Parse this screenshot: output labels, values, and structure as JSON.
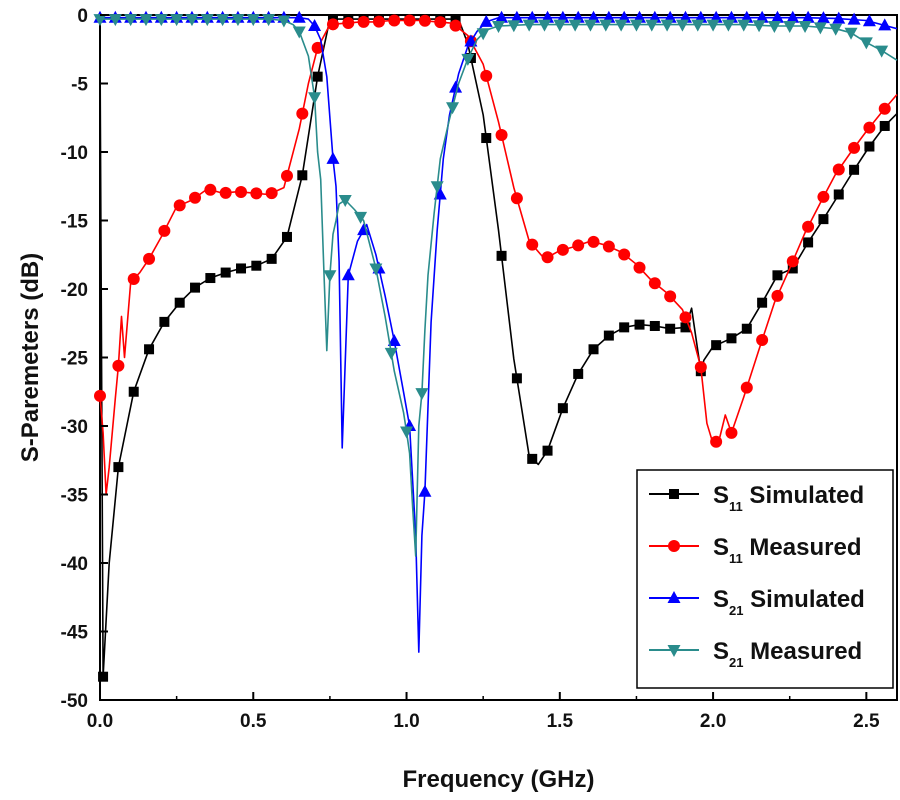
{
  "chart_data": {
    "type": "line",
    "title": "",
    "xlabel": "Frequency (GHz)",
    "ylabel": "S-Paremeters (dB)",
    "xlim": [
      0.0,
      2.6
    ],
    "ylim": [
      -50,
      0
    ],
    "x_ticks": [
      "0.0",
      "0.5",
      "1.0",
      "1.5",
      "2.0",
      "2.5"
    ],
    "y_ticks": [
      "0",
      "-5",
      "-10",
      "-15",
      "-20",
      "-25",
      "-30",
      "-35",
      "-40",
      "-45",
      "-50"
    ],
    "grid": false,
    "legend_position": "bottom-right",
    "series": [
      {
        "name": "S11 Simulated",
        "label_main": "S",
        "label_sub": "11",
        "label_rest": " Simulated",
        "color": "#000000",
        "marker": "square",
        "x": [
          0.0,
          0.01,
          0.03,
          0.06,
          0.11,
          0.16,
          0.21,
          0.26,
          0.31,
          0.36,
          0.41,
          0.46,
          0.51,
          0.56,
          0.61,
          0.66,
          0.71,
          0.75,
          0.8,
          0.85,
          0.9,
          0.95,
          1.0,
          1.05,
          1.1,
          1.15,
          1.17,
          1.2,
          1.25,
          1.3,
          1.35,
          1.4,
          1.43,
          1.46,
          1.51,
          1.56,
          1.61,
          1.66,
          1.71,
          1.76,
          1.81,
          1.86,
          1.91,
          1.93,
          1.96,
          1.97,
          2.0,
          2.06,
          2.11,
          2.16,
          2.21,
          2.26,
          2.31,
          2.36,
          2.41,
          2.46,
          2.51,
          2.56,
          2.6
        ],
        "values": [
          -2,
          -48.3,
          -40,
          -33,
          -27.5,
          -24.4,
          -22.4,
          -21,
          -19.9,
          -19.2,
          -18.8,
          -18.5,
          -18.3,
          -17.8,
          -16.2,
          -11.7,
          -4.5,
          -0.3,
          -0.3,
          -0.3,
          -0.3,
          -0.3,
          -0.3,
          -0.3,
          -0.3,
          -0.3,
          -0.3,
          -2.1,
          -7.3,
          -15.7,
          -25.1,
          -32.2,
          -32.8,
          -31.8,
          -28.7,
          -26.2,
          -24.4,
          -23.4,
          -22.8,
          -22.6,
          -22.7,
          -22.9,
          -22.8,
          -21.4,
          -26.0,
          -25.2,
          -24.2,
          -23.6,
          -22.9,
          -21.0,
          -19.0,
          -18.5,
          -16.6,
          -14.9,
          -13.1,
          -11.3,
          -9.6,
          -8.1,
          -7.2
        ],
        "marker_x": [
          0.01,
          0.06,
          0.11,
          0.16,
          0.21,
          0.26,
          0.31,
          0.36,
          0.41,
          0.46,
          0.51,
          0.56,
          0.61,
          0.66,
          0.71,
          0.76,
          0.81,
          0.86,
          0.91,
          0.96,
          1.01,
          1.06,
          1.11,
          1.16,
          1.21,
          1.26,
          1.31,
          1.36,
          1.41,
          1.46,
          1.51,
          1.56,
          1.61,
          1.66,
          1.71,
          1.76,
          1.81,
          1.86,
          1.91,
          1.96,
          2.01,
          2.06,
          2.11,
          2.16,
          2.21,
          2.26,
          2.31,
          2.36,
          2.41,
          2.46,
          2.51,
          2.56
        ]
      },
      {
        "name": "S11 Measured",
        "label_main": "S",
        "label_sub": "11",
        "label_rest": " Measured",
        "color": "#ff0000",
        "marker": "circle",
        "x": [
          0.0,
          0.01,
          0.02,
          0.03,
          0.05,
          0.06,
          0.07,
          0.08,
          0.1,
          0.13,
          0.16,
          0.2,
          0.25,
          0.3,
          0.35,
          0.4,
          0.45,
          0.5,
          0.55,
          0.6,
          0.65,
          0.68,
          0.71,
          0.75,
          0.8,
          0.85,
          0.9,
          0.95,
          1.0,
          1.05,
          1.1,
          1.15,
          1.2,
          1.25,
          1.3,
          1.35,
          1.4,
          1.45,
          1.5,
          1.55,
          1.6,
          1.65,
          1.7,
          1.75,
          1.8,
          1.85,
          1.9,
          1.93,
          1.96,
          1.98,
          2.0,
          2.02,
          2.04,
          2.06,
          2.1,
          2.15,
          2.2,
          2.25,
          2.3,
          2.35,
          2.4,
          2.45,
          2.5,
          2.55,
          2.6
        ],
        "values": [
          -27.8,
          -30.5,
          -35,
          -33,
          -28,
          -25.6,
          -22,
          -25,
          -19.5,
          -18.8,
          -17.8,
          -16.2,
          -14,
          -13.5,
          -12.7,
          -13,
          -12.9,
          -13,
          -13.1,
          -12.6,
          -8.3,
          -5,
          -2.4,
          -0.7,
          -0.6,
          -0.5,
          -0.5,
          -0.4,
          -0.4,
          -0.4,
          -0.5,
          -0.6,
          -1.5,
          -3.6,
          -7.8,
          -12.6,
          -16.5,
          -17.8,
          -17.2,
          -16.9,
          -16.5,
          -16.8,
          -17.3,
          -18.2,
          -19.4,
          -20.3,
          -21.5,
          -23.2,
          -25.7,
          -29.8,
          -31.3,
          -31.0,
          -29.2,
          -30.5,
          -27.9,
          -24.4,
          -21.0,
          -18.5,
          -15.9,
          -13.7,
          -11.6,
          -10.0,
          -8.5,
          -7.1,
          -5.8
        ],
        "marker_x": [
          0.0,
          0.06,
          0.11,
          0.16,
          0.21,
          0.26,
          0.31,
          0.36,
          0.41,
          0.46,
          0.51,
          0.56,
          0.61,
          0.66,
          0.71,
          0.76,
          0.81,
          0.86,
          0.91,
          0.96,
          1.01,
          1.06,
          1.11,
          1.16,
          1.21,
          1.26,
          1.31,
          1.36,
          1.41,
          1.46,
          1.51,
          1.56,
          1.61,
          1.66,
          1.71,
          1.76,
          1.81,
          1.86,
          1.91,
          1.96,
          2.01,
          2.06,
          2.11,
          2.16,
          2.21,
          2.26,
          2.31,
          2.36,
          2.41,
          2.46,
          2.51,
          2.56
        ]
      },
      {
        "name": "S21 Simulated",
        "label_main": "S",
        "label_sub": "21",
        "label_rest": " Simulated",
        "color": "#0000ff",
        "marker": "triangle-up",
        "x": [
          0.0,
          0.1,
          0.2,
          0.3,
          0.4,
          0.5,
          0.6,
          0.65,
          0.68,
          0.7,
          0.72,
          0.74,
          0.76,
          0.77,
          0.78,
          0.79,
          0.81,
          0.84,
          0.87,
          0.9,
          0.93,
          0.96,
          0.99,
          1.01,
          1.03,
          1.04,
          1.05,
          1.06,
          1.08,
          1.1,
          1.12,
          1.14,
          1.17,
          1.2,
          1.23,
          1.26,
          1.3,
          1.4,
          1.5,
          1.6,
          1.7,
          1.8,
          1.9,
          2.0,
          2.1,
          2.2,
          2.3,
          2.4,
          2.5,
          2.55,
          2.6
        ],
        "values": [
          -0.2,
          -0.2,
          -0.2,
          -0.2,
          -0.2,
          -0.2,
          -0.2,
          -0.2,
          -0.3,
          -0.8,
          -1.8,
          -4.5,
          -10.5,
          -12.5,
          -18,
          -31.6,
          -19,
          -16.5,
          -15.3,
          -17.5,
          -20.5,
          -23.8,
          -27.5,
          -30,
          -38,
          -46.5,
          -38,
          -34.8,
          -22.4,
          -15.7,
          -10.5,
          -7.3,
          -4.3,
          -2.3,
          -1.2,
          -0.5,
          -0.2,
          -0.2,
          -0.2,
          -0.2,
          -0.2,
          -0.2,
          -0.2,
          -0.2,
          -0.2,
          -0.2,
          -0.2,
          -0.25,
          -0.4,
          -0.7,
          -1.0
        ],
        "marker_x": [
          0.0,
          0.05,
          0.1,
          0.15,
          0.2,
          0.25,
          0.3,
          0.35,
          0.4,
          0.45,
          0.5,
          0.55,
          0.6,
          0.65,
          0.7,
          0.76,
          0.81,
          0.86,
          0.91,
          0.96,
          1.01,
          1.06,
          1.11,
          1.16,
          1.21,
          1.26,
          1.31,
          1.36,
          1.41,
          1.46,
          1.51,
          1.56,
          1.61,
          1.66,
          1.71,
          1.76,
          1.81,
          1.86,
          1.91,
          1.96,
          2.01,
          2.06,
          2.11,
          2.16,
          2.21,
          2.26,
          2.31,
          2.36,
          2.41,
          2.46,
          2.51,
          2.56
        ]
      },
      {
        "name": "S21 Measured",
        "label_main": "S",
        "label_sub": "21",
        "label_rest": " Measured",
        "color": "#2a8c8c",
        "marker": "triangle-down",
        "x": [
          0.0,
          0.1,
          0.2,
          0.3,
          0.4,
          0.5,
          0.55,
          0.6,
          0.63,
          0.65,
          0.66,
          0.68,
          0.7,
          0.71,
          0.72,
          0.73,
          0.74,
          0.75,
          0.76,
          0.77,
          0.78,
          0.8,
          0.83,
          0.86,
          0.9,
          0.93,
          0.96,
          0.99,
          1.0,
          1.01,
          1.02,
          1.03,
          1.04,
          1.05,
          1.06,
          1.07,
          1.09,
          1.11,
          1.14,
          1.17,
          1.2,
          1.23,
          1.26,
          1.3,
          1.4,
          1.5,
          1.6,
          1.7,
          1.8,
          1.9,
          2.0,
          2.1,
          2.2,
          2.3,
          2.4,
          2.45,
          2.5,
          2.55,
          2.6
        ],
        "values": [
          -0.3,
          -0.3,
          -0.3,
          -0.3,
          -0.3,
          -0.3,
          -0.3,
          -0.4,
          -0.7,
          -1.2,
          -1.8,
          -3,
          -6,
          -10,
          -12,
          -18.5,
          -24.5,
          -19,
          -16,
          -15,
          -13.8,
          -13.5,
          -14.2,
          -15,
          -18.5,
          -22,
          -26,
          -29,
          -30.4,
          -32,
          -36,
          -39.5,
          -30,
          -27.6,
          -23,
          -19,
          -14.5,
          -10.5,
          -7.6,
          -5,
          -3.2,
          -1.8,
          -1.1,
          -0.8,
          -0.7,
          -0.7,
          -0.7,
          -0.7,
          -0.7,
          -0.7,
          -0.7,
          -0.7,
          -0.8,
          -0.8,
          -1.0,
          -1.3,
          -2.0,
          -2.6,
          -3.3
        ],
        "marker_x": [
          0.0,
          0.05,
          0.1,
          0.15,
          0.2,
          0.25,
          0.3,
          0.35,
          0.4,
          0.45,
          0.5,
          0.55,
          0.6,
          0.65,
          0.7,
          0.75,
          0.8,
          0.85,
          0.9,
          0.95,
          1.0,
          1.05,
          1.1,
          1.15,
          1.2,
          1.25,
          1.3,
          1.35,
          1.4,
          1.45,
          1.5,
          1.55,
          1.6,
          1.65,
          1.7,
          1.75,
          1.8,
          1.85,
          1.9,
          1.95,
          2.0,
          2.05,
          2.1,
          2.15,
          2.2,
          2.25,
          2.3,
          2.35,
          2.4,
          2.45,
          2.5,
          2.55
        ]
      }
    ]
  }
}
